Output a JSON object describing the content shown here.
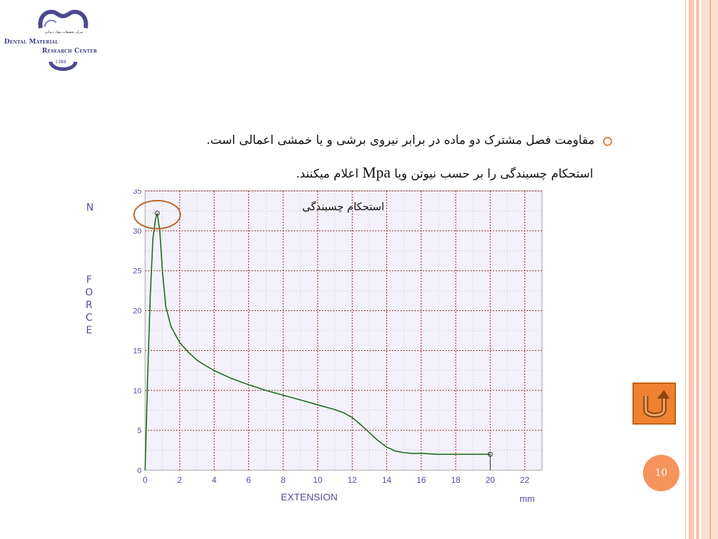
{
  "logo": {
    "line1": "Dental Material",
    "line2": "Research Center",
    "year": "1389",
    "tagline": "مرکز تحقیقات مواد دندانی"
  },
  "bullets": [
    {
      "line1": "مقاومت فصل مشترک دو ماده در برابر نیروی برشی و یا خمشی اعمالی است.",
      "line2_before": "استحکام چسبندگی را بر حسب نیوتن ویا ",
      "line2_unit": "Mpa",
      "line2_after": " اعلام میکنند."
    }
  ],
  "page_number": "10",
  "colors": {
    "accent": "#f07b45",
    "curve": "#1f6b1f",
    "grid": "#a02020",
    "circle_marker": "#b8692e",
    "axis_text": "#5b4a9a"
  },
  "icons": {
    "bullet": "ring-bullet-icon",
    "nav": "return-arrow-icon"
  },
  "chart_data": {
    "type": "line",
    "title": "",
    "xlabel": "EXTENSION",
    "ylabel": "FORCE",
    "x_unit": "mm",
    "y_unit": "N",
    "xlim": [
      0,
      23
    ],
    "ylim": [
      0,
      35
    ],
    "xticks": [
      "0",
      "2",
      "4",
      "6",
      "8",
      "10",
      "12",
      "14",
      "16",
      "18",
      "20",
      "22"
    ],
    "yticks": [
      "0",
      "5",
      "10",
      "15",
      "20",
      "25",
      "30",
      "35"
    ],
    "grid": true,
    "annotation": "استحکام چسبندگی",
    "series": [
      {
        "x": [
          0,
          0.05,
          0.15,
          0.3,
          0.45,
          0.6,
          0.7,
          0.85,
          1.0,
          1.2,
          1.5,
          2.0,
          2.5,
          3,
          3.5,
          4,
          5,
          6,
          7,
          8,
          9,
          10,
          11,
          11.5,
          12,
          12.5,
          13,
          13.5,
          14,
          14.5,
          15,
          15.5,
          16,
          17,
          18,
          19,
          20
        ],
        "y": [
          0,
          4,
          12,
          22,
          29,
          31.5,
          32.2,
          30,
          25,
          20.5,
          18,
          16,
          14.8,
          13.8,
          13.1,
          12.5,
          11.5,
          10.7,
          10.0,
          9.4,
          8.8,
          8.2,
          7.6,
          7.2,
          6.6,
          5.7,
          4.7,
          3.7,
          2.9,
          2.4,
          2.2,
          2.1,
          2.1,
          2.0,
          2.0,
          2.0,
          2.0
        ]
      }
    ],
    "markers": [
      {
        "x": 0.7,
        "y": 32.2
      },
      {
        "x": 20,
        "y": 2.0
      }
    ]
  }
}
